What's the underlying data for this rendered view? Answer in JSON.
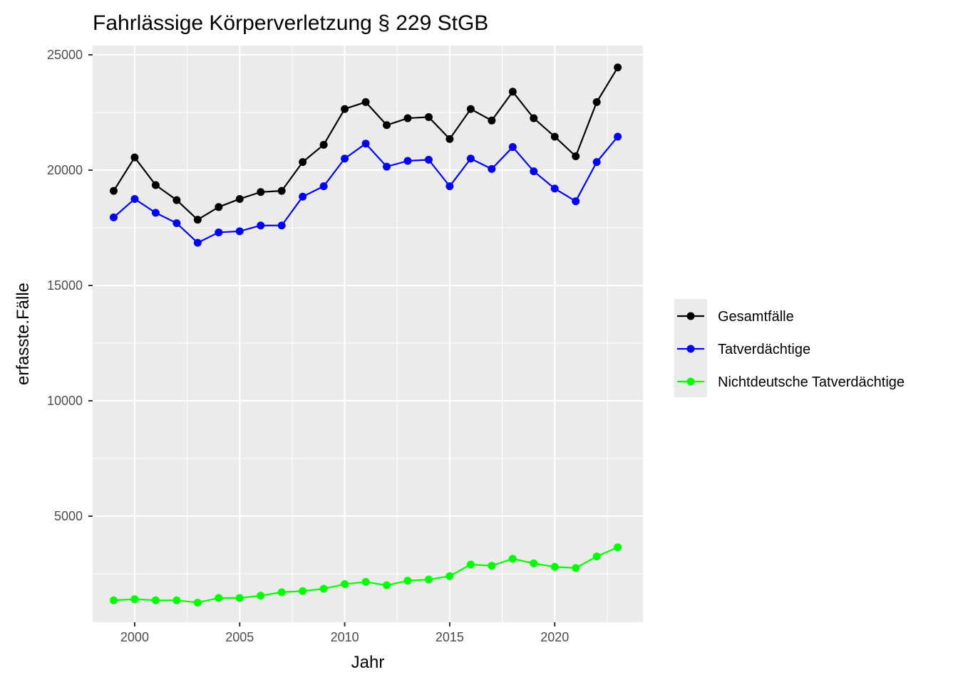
{
  "chart_data": {
    "type": "line",
    "title": "Fahrlässige Körperverletzung § 229 StGB",
    "xlabel": "Jahr",
    "ylabel": "erfasste.Fälle",
    "xlim": [
      1998,
      2024.2
    ],
    "ylim": [
      400,
      25400
    ],
    "x_ticks": [
      2000,
      2005,
      2010,
      2015,
      2020
    ],
    "x_tick_labels": [
      "2000",
      "2005",
      "2010",
      "2015",
      "2020"
    ],
    "y_ticks": [
      5000,
      10000,
      15000,
      20000,
      25000
    ],
    "y_tick_labels": [
      "5000",
      "10000",
      "15000",
      "20000",
      "25000"
    ],
    "grid": true,
    "legend_position": "right",
    "x": [
      1999,
      2000,
      2001,
      2002,
      2003,
      2004,
      2005,
      2006,
      2007,
      2008,
      2009,
      2010,
      2011,
      2012,
      2013,
      2014,
      2015,
      2016,
      2017,
      2018,
      2019,
      2020,
      2021,
      2022,
      2023
    ],
    "series": [
      {
        "name": "Gesamtfälle",
        "color": "#000000",
        "values": [
          19100,
          20550,
          19350,
          18700,
          17850,
          18400,
          18750,
          19050,
          19100,
          20350,
          21100,
          22650,
          22950,
          21950,
          22250,
          22300,
          21350,
          22650,
          22150,
          23400,
          22250,
          21450,
          20600,
          22950,
          24450
        ]
      },
      {
        "name": "Tatverdächtige",
        "color": "#0000ff",
        "values": [
          17950,
          18750,
          18150,
          17700,
          16850,
          17300,
          17350,
          17600,
          17600,
          18850,
          19300,
          20500,
          21150,
          20150,
          20400,
          20450,
          19300,
          20500,
          20050,
          21000,
          19950,
          19200,
          18650,
          20350,
          21450
        ]
      },
      {
        "name": "Nichtdeutsche Tatverdächtige",
        "color": "#00ff00",
        "values": [
          1350,
          1400,
          1350,
          1350,
          1250,
          1450,
          1450,
          1550,
          1700,
          1750,
          1850,
          2050,
          2150,
          2000,
          2200,
          2250,
          2400,
          2900,
          2850,
          3150,
          2950,
          2800,
          2750,
          3250,
          3650
        ]
      }
    ]
  }
}
